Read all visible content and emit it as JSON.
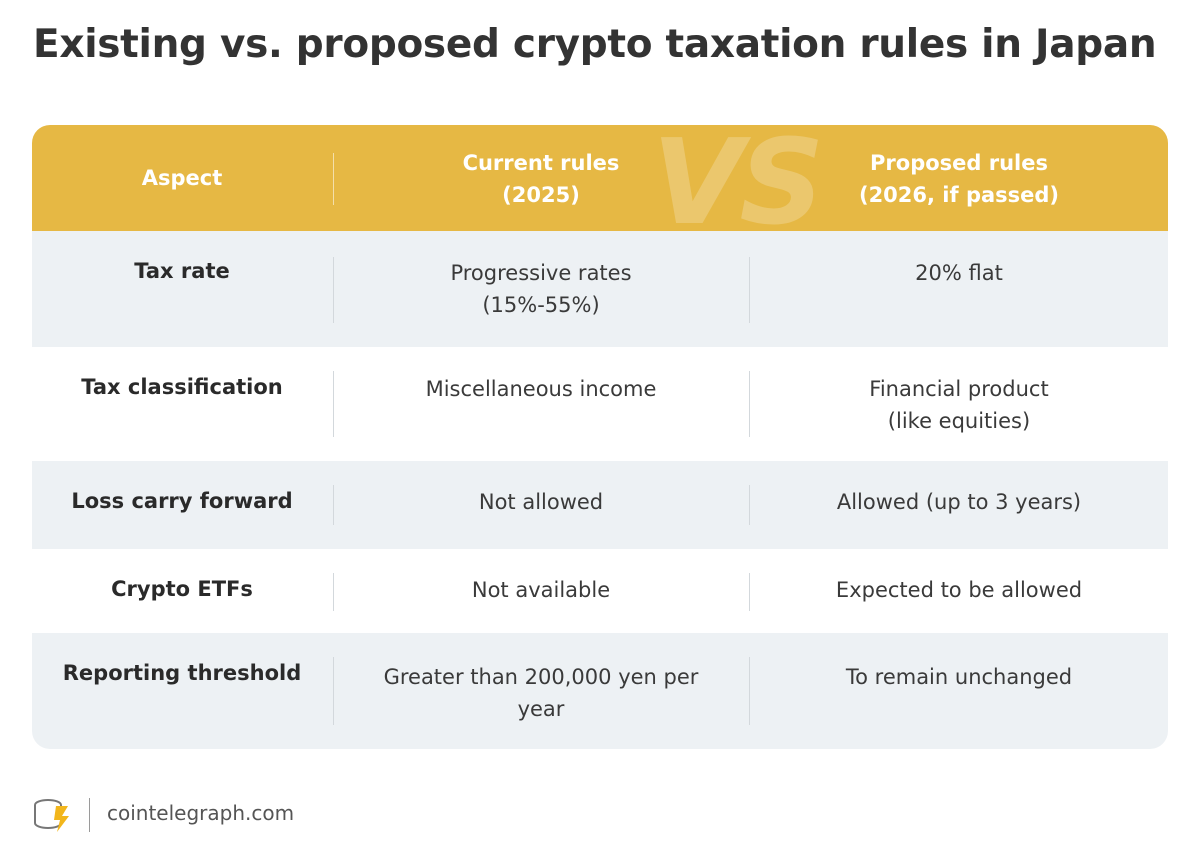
{
  "title": "Existing vs. proposed crypto taxation rules in Japan",
  "header": {
    "aspect": "Aspect",
    "current": "Current rules\n(2025)",
    "proposed": "Proposed rules\n(2026, if passed)",
    "watermark": "VS"
  },
  "rows": [
    {
      "aspect": "Tax rate",
      "current": "Progressive rates\n(15%-55%)",
      "proposed": "20% flat"
    },
    {
      "aspect": "Tax classification",
      "current": "Miscellaneous income",
      "proposed": "Financial product\n(like equities)"
    },
    {
      "aspect": "Loss carry forward",
      "current": "Not allowed",
      "proposed": "Allowed (up to 3 years)"
    },
    {
      "aspect": "Crypto ETFs",
      "current": "Not available",
      "proposed": "Expected to be allowed"
    },
    {
      "aspect": "Reporting threshold",
      "current": "Greater than 200,000 yen per\nyear",
      "proposed": "To remain unchanged"
    }
  ],
  "footer": {
    "brand": "cointelegraph.com",
    "logo_icon": "cointelegraph-logo-icon"
  },
  "colors": {
    "header_bg": "#e6b844",
    "row_shaded_bg": "#edf1f4",
    "row_plain_bg": "#ffffff",
    "logo_accent": "#f2b61c"
  }
}
